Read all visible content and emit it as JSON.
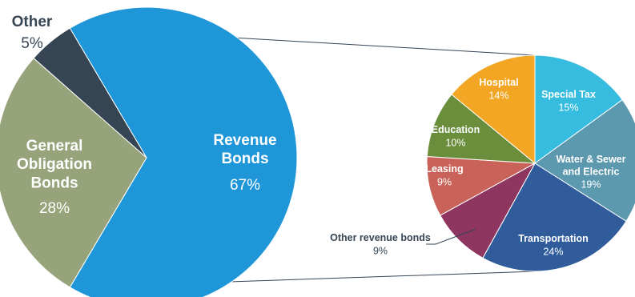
{
  "chart_data": [
    {
      "type": "pie",
      "slices": [
        {
          "name": "Revenue Bonds",
          "value": 67,
          "value_label": "67%",
          "color": "#1e96d8",
          "label_color": "#ffffff"
        },
        {
          "name": "General Obligation Bonds",
          "name_lines": [
            "General",
            "Obligation",
            "Bonds"
          ],
          "value": 28,
          "value_label": "28%",
          "color": "#97a37a",
          "label_color": "#ffffff"
        },
        {
          "name": "Other",
          "value": 5,
          "value_label": "5%",
          "color": "#364554",
          "label_color": "#364554"
        }
      ]
    },
    {
      "type": "pie",
      "title_ref": "Revenue Bonds",
      "slices": [
        {
          "name": "Special Tax",
          "value": 15,
          "value_label": "15%",
          "color": "#35bcdf"
        },
        {
          "name": "Water & Sewer and Electric",
          "name_lines": [
            "Water & Sewer",
            "and Electric"
          ],
          "value": 19,
          "value_label": "19%",
          "color": "#5c98ae"
        },
        {
          "name": "Transportation",
          "value": 24,
          "value_label": "24%",
          "color": "#305c9c"
        },
        {
          "name": "Other revenue bonds",
          "value": 9,
          "value_label": "9%",
          "color": "#8e3560",
          "label_color": "#364554"
        },
        {
          "name": "Leasing",
          "value": 9,
          "value_label": "9%",
          "color": "#c9635a"
        },
        {
          "name": "Education",
          "value": 10,
          "value_label": "10%",
          "color": "#6a8e3c"
        },
        {
          "name": "Hospital",
          "value": 14,
          "value_label": "14%",
          "color": "#f2a623"
        }
      ]
    }
  ]
}
